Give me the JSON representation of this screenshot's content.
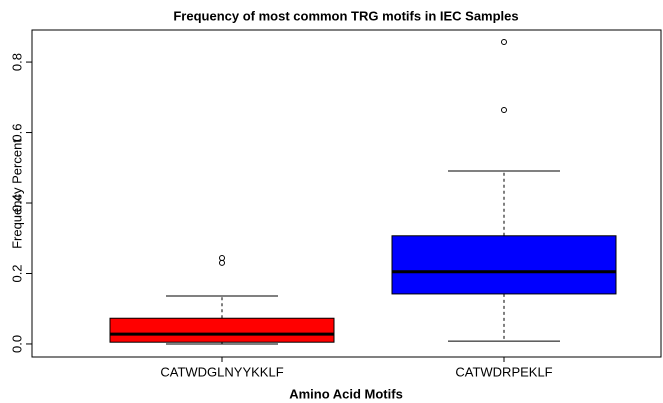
{
  "chart_data": {
    "type": "box",
    "title": "Frequency of most common TRG motifs in IEC Samples",
    "xlabel": "Amino Acid Motifs",
    "ylabel": "Frequency Percent",
    "ylim": [
      -0.037,
      0.891
    ],
    "yticks": [
      {
        "value": 0,
        "label": "0.0"
      },
      0.2,
      0.4,
      0.6,
      0.8
    ],
    "boxes": [
      {
        "name": "CATWDGLNYYKKLF",
        "color": "#ff0000",
        "whisker_low": 0.0,
        "q1": 0.005,
        "median": 0.028,
        "q3": 0.073,
        "whisker_high": 0.136,
        "outliers": [
          0.23,
          0.244
        ]
      },
      {
        "name": "CATWDRPEKLF",
        "color": "#0000ff",
        "whisker_low": 0.008,
        "q1": 0.142,
        "median": 0.205,
        "q3": 0.307,
        "whisker_high": 0.491,
        "outliers": [
          0.664,
          0.857
        ]
      }
    ]
  }
}
